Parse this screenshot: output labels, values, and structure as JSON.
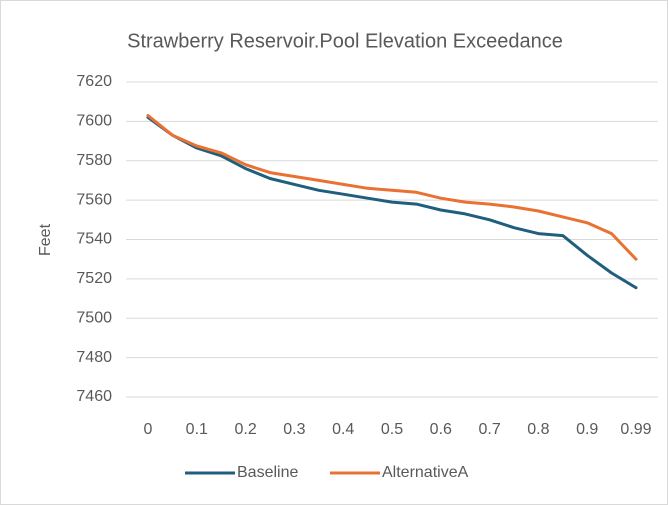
{
  "chart_data": {
    "type": "line",
    "title": "Strawberry Reservoir.Pool Elevation Exceedance",
    "y_label": "Feet",
    "categories": [
      "0",
      null,
      "0.1",
      null,
      "0.2",
      null,
      "0.3",
      null,
      "0.4",
      null,
      "0.5",
      null,
      "0.6",
      null,
      "0.7",
      null,
      "0.8",
      null,
      "0.9",
      null,
      "0.99"
    ],
    "series": [
      {
        "name": "Baseline",
        "color": "#1f5f7d",
        "values": [
          7602,
          7593,
          7586.5,
          7582.5,
          7576,
          7571,
          7568,
          7565,
          7563,
          7561,
          7559,
          7558,
          7555,
          7553,
          7550,
          7546,
          7543,
          7542,
          7532,
          7523,
          7515.5
        ]
      },
      {
        "name": "AlternativeA",
        "color": "#e97132",
        "values": [
          7603,
          7593,
          7587.5,
          7584,
          7578,
          7574,
          7572,
          7570,
          7568,
          7566,
          7565,
          7564,
          7561,
          7559,
          7558,
          7556.5,
          7554.5,
          7551.5,
          7548.5,
          7543,
          7530
        ]
      }
    ],
    "ylim": [
      7460,
      7620
    ],
    "yticks": [
      7460,
      7480,
      7500,
      7520,
      7540,
      7560,
      7580,
      7600,
      7620
    ],
    "grid": true,
    "legend": "bottom"
  }
}
